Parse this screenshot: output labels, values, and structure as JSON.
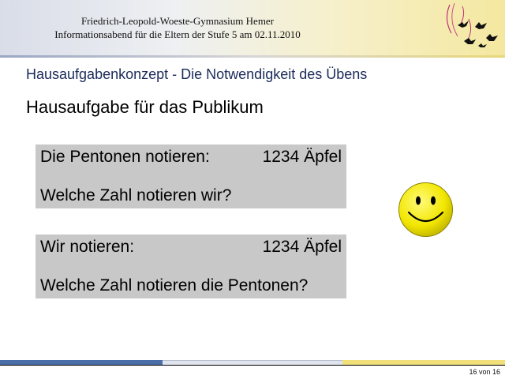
{
  "header": {
    "school": "Friedrich-Leopold-Woeste-Gymnasium Hemer",
    "event": "Informationsabend für die Eltern der Stufe 5 am 02.11.2010"
  },
  "section_title": "Hausaufgabenkonzept - Die Notwendigkeit des Übens",
  "heading": "Hausaufgabe für das Publikum",
  "boxes": [
    {
      "left": "Die Pentonen notieren:",
      "right": "1234 Äpfel",
      "question": "Welche Zahl notieren wir?"
    },
    {
      "left": "Wir notieren:",
      "right": "1234 Äpfel",
      "question": "Welche Zahl notieren die Pentonen?"
    }
  ],
  "footer": {
    "page": "16 von 16"
  },
  "icons": {
    "logo": "birds-logo-icon",
    "smiley": "smiley-face-icon"
  },
  "colors": {
    "title_blue": "#1a2a5a",
    "box_gray": "#c8c8c8",
    "smiley_yellow": "#f2e600"
  }
}
